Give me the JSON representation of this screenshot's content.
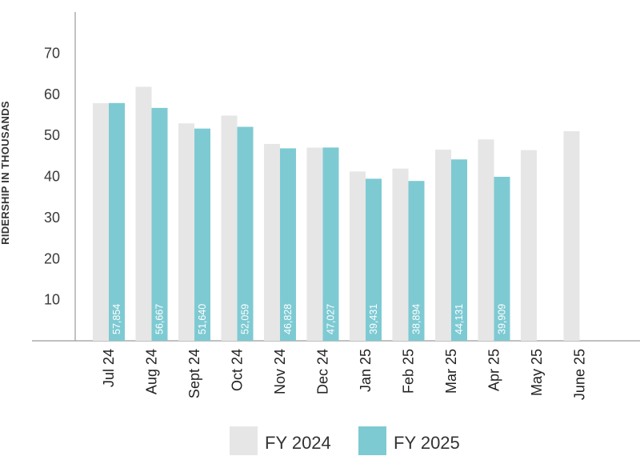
{
  "chart_data": {
    "type": "bar",
    "ylabel": "RIDERSHIP IN THOUSANDS",
    "ylim": [
      0,
      80
    ],
    "yticks": [
      10,
      20,
      30,
      40,
      50,
      60,
      70
    ],
    "categories": [
      "Jul 24",
      "Aug 24",
      "Sept 24",
      "Oct 24",
      "Nov 24",
      "Dec 24",
      "Jan 25",
      "Feb 25",
      "Mar 25",
      "Apr 25",
      "May 25",
      "June 25"
    ],
    "series": [
      {
        "name": "FY 2024",
        "color": "#e6e6e6",
        "values": [
          57.8,
          61.8,
          52.9,
          54.8,
          47.9,
          47.0,
          41.2,
          41.9,
          46.5,
          49.0,
          46.4,
          51.0
        ],
        "labels": []
      },
      {
        "name": "FY 2025",
        "color": "#7ecad3",
        "values": [
          57.854,
          56.667,
          51.64,
          52.059,
          46.828,
          47.027,
          39.431,
          38.894,
          44.131,
          39.909,
          null,
          null
        ],
        "labels": [
          "57,854",
          "56,667",
          "51,640",
          "52,059",
          "46,828",
          "47,027",
          "39,431",
          "38,894",
          "44,131",
          "39,909",
          "",
          ""
        ]
      }
    ],
    "grid": false,
    "legend": "bottom"
  }
}
